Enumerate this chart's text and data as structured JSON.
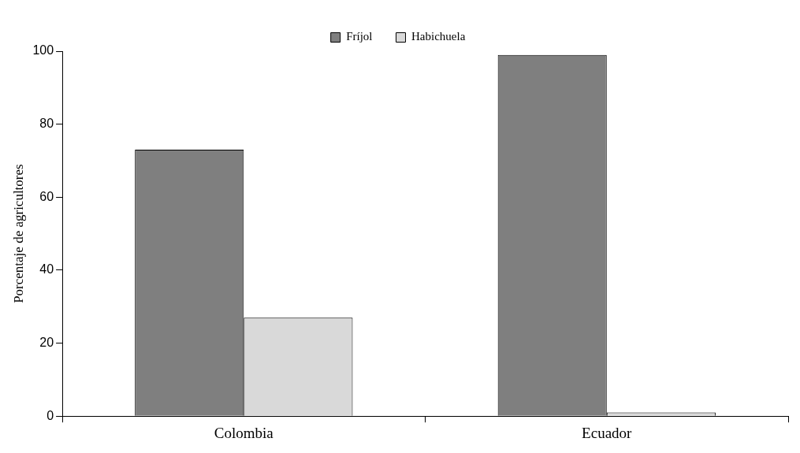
{
  "chart_data": {
    "type": "bar",
    "ylabel": "Porcentaje de agricultores",
    "categories": [
      "Colombia",
      "Ecuador"
    ],
    "series": [
      {
        "name": "Fríjol",
        "color": "#7f7f7f",
        "values": [
          73,
          99
        ]
      },
      {
        "name": "Habichuela",
        "color": "#d9d9d9",
        "values": [
          27,
          1
        ]
      }
    ],
    "ylim": [
      0,
      100
    ],
    "yticks": [
      0,
      20,
      40,
      60,
      80,
      100
    ],
    "grid": false,
    "legend": "top"
  }
}
